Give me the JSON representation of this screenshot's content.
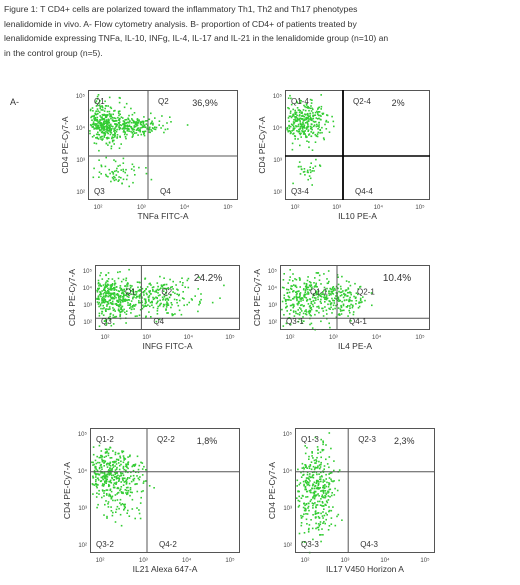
{
  "caption": {
    "line1": "Figure 1: T CD4+ cells are polarized toward the inflammatory Th1, Th2 and Th17 phenotypes",
    "line2": "lenalidomide in vivo. A- Flow cytometry analysis. B- proportion of CD4+ of patients treated by",
    "line3": "lenalidomide expressing TNFa, IL-10, INFg, IL-4, IL-17 and IL-21 in the lenalidomide group (n=10) an",
    "line4": "in the control group (n=5)."
  },
  "panel_label": "A-",
  "axis_color": "#555555",
  "dot_color": "#33cc33",
  "plots": [
    {
      "ylabel": "CD4 PE-Cy7-A",
      "xlabel": "TNFa FITC-A",
      "percent": "36,9%",
      "quads": [
        "Q1",
        "Q2",
        "Q3",
        "Q4"
      ]
    },
    {
      "ylabel": "CD4 PE-Cy7-A",
      "xlabel": "IL10 PE-A",
      "percent": "2%",
      "quads": [
        "Q1-4",
        "Q2-4",
        "Q3-4",
        "Q4-4"
      ]
    },
    {
      "ylabel": "CD4 PE-Cy7-A",
      "xlabel": "INFG FITC-A",
      "percent": "24.2%",
      "quads": [
        "Q1",
        "Q2",
        "Q3",
        "Q4"
      ]
    },
    {
      "ylabel": "CD4 PE-Cy7-A",
      "xlabel": "IL4 PE-A",
      "percent": "10.4%",
      "quads": [
        "Q1-1",
        "Q2-1",
        "Q3-1",
        "Q4-1"
      ]
    },
    {
      "ylabel": "CD4 PE-Cy7-A",
      "xlabel": "IL21 Alexa 647-A",
      "percent": "1,8%",
      "quads": [
        "Q1-2",
        "Q2-2",
        "Q3-2",
        "Q4-2"
      ]
    },
    {
      "ylabel": "CD4 PE-Cy7-A",
      "xlabel": "IL17 V450 Horizon A",
      "percent": "2,3%",
      "quads": [
        "Q1-3",
        "Q2-3",
        "Q3-3",
        "Q4-3"
      ]
    }
  ],
  "ticks": {
    "x": [
      "10²",
      "10³",
      "10⁴",
      "10⁵"
    ],
    "y": [
      "10²",
      "10³",
      "10⁴",
      "10⁵"
    ]
  }
}
